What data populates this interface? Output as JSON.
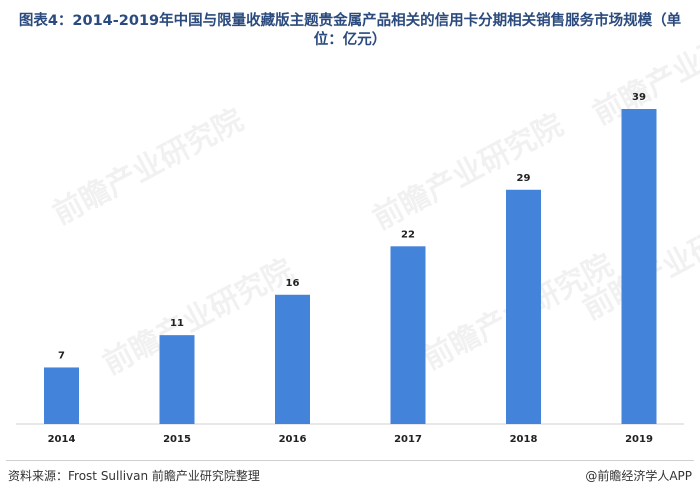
{
  "title": "图表4：2014-2019年中国与限量收藏版主题贵金属产品相关的信用卡分期相关销售服务市场规模（单位：亿元）",
  "source": "资料来源：Frost Sullivan  前瞻产业研究院整理",
  "brand": "@前瞻经济学人APP",
  "watermark": "前瞻产业研究院",
  "colors": {
    "bar": "#4383d9",
    "title": "#2b4a7d"
  },
  "chart_data": {
    "type": "bar",
    "categories": [
      "2014",
      "2015",
      "2016",
      "2017",
      "2018",
      "2019"
    ],
    "values": [
      7,
      11,
      16,
      22,
      29,
      39
    ],
    "title": "图表4：2014-2019年中国与限量收藏版主题贵金属产品相关的信用卡分期相关销售服务市场规模（单位：亿元）",
    "xlabel": "",
    "ylabel": "",
    "ylim": [
      0,
      39
    ],
    "grid": false,
    "legend": "none",
    "data_labels": true
  }
}
